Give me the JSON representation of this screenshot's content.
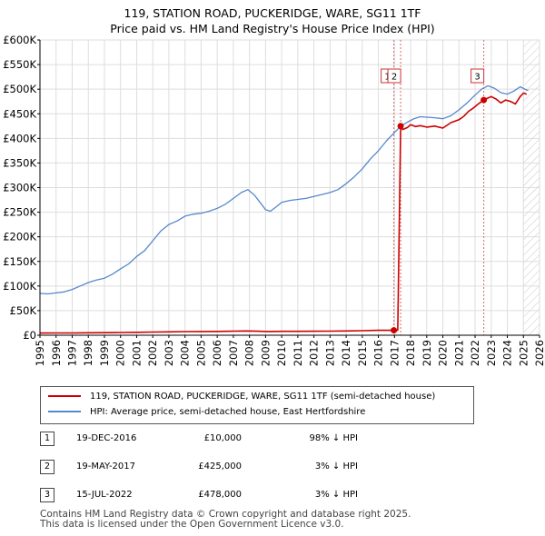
{
  "chart_data": {
    "type": "line",
    "title_line1": "119, STATION ROAD, PUCKERIDGE, WARE, SG11 1TF",
    "title_line2": "Price paid vs. HM Land Registry's House Price Index (HPI)",
    "xlim": [
      1995,
      2026
    ],
    "ylim": [
      0,
      600000
    ],
    "y_ticks": [
      0,
      50000,
      100000,
      150000,
      200000,
      250000,
      300000,
      350000,
      400000,
      450000,
      500000,
      550000,
      600000
    ],
    "y_tick_labels": [
      "£0",
      "£50K",
      "£100K",
      "£150K",
      "£200K",
      "£250K",
      "£300K",
      "£350K",
      "£400K",
      "£450K",
      "£500K",
      "£550K",
      "£600K"
    ],
    "x_ticks": [
      1995,
      1996,
      1997,
      1998,
      1999,
      2000,
      2001,
      2002,
      2003,
      2004,
      2005,
      2006,
      2007,
      2008,
      2009,
      2010,
      2011,
      2012,
      2013,
      2014,
      2015,
      2016,
      2017,
      2018,
      2019,
      2020,
      2021,
      2022,
      2023,
      2024,
      2025,
      2026
    ],
    "x_tick_labels": [
      "1995",
      "1996",
      "1997",
      "1998",
      "1999",
      "2000",
      "2001",
      "2002",
      "2003",
      "2004",
      "2005",
      "2006",
      "2007",
      "2008",
      "2009",
      "2010",
      "2011",
      "2012",
      "2013",
      "2014",
      "2015",
      "2016",
      "2017",
      "2018",
      "2019",
      "2020",
      "2021",
      "2022",
      "2023",
      "2024",
      "2025",
      "2026"
    ],
    "hatch_from": 2025.0,
    "series": [
      {
        "name": "119, STATION ROAD, PUCKERIDGE, WARE, SG11 1TF (semi-detached house)",
        "color": "#cc0000",
        "x": [
          1995.0,
          1996.0,
          1997.0,
          1998.0,
          1999.0,
          2000.0,
          2001.0,
          2002.0,
          2003.0,
          2004.0,
          2005.0,
          2006.0,
          2007.0,
          2007.8,
          2008.5,
          2009.2,
          2010.0,
          2011.0,
          2012.0,
          2013.0,
          2014.0,
          2015.0,
          2016.0,
          2016.96,
          2017.0,
          2017.2,
          2017.38,
          2017.5,
          2017.8,
          2018.0,
          2018.3,
          2018.6,
          2019.0,
          2019.5,
          2020.0,
          2020.5,
          2021.0,
          2021.3,
          2021.6,
          2021.9,
          2022.2,
          2022.54,
          2022.8,
          2023.0,
          2023.3,
          2023.6,
          2023.9,
          2024.2,
          2024.5,
          2024.8,
          2025.0,
          2025.2
        ],
        "y": [
          4500,
          4600,
          4700,
          4900,
          5100,
          5500,
          5900,
          6400,
          6900,
          7300,
          7500,
          7800,
          8300,
          8600,
          8200,
          7500,
          7900,
          8000,
          8100,
          8300,
          8700,
          9300,
          9900,
          10000,
          10050,
          10200,
          425000,
          418000,
          422000,
          428000,
          424000,
          426000,
          423000,
          425000,
          421000,
          432000,
          438000,
          445000,
          455000,
          462000,
          470000,
          478000,
          482000,
          485000,
          480000,
          472000,
          478000,
          475000,
          470000,
          485000,
          492000,
          490000
        ]
      },
      {
        "name": "HPI: Average price, semi-detached house, East Hertfordshire",
        "color": "#5588cc",
        "x": [
          1995.0,
          1995.5,
          1996.0,
          1996.5,
          1997.0,
          1997.5,
          1998.0,
          1998.5,
          1999.0,
          1999.5,
          2000.0,
          2000.5,
          2001.0,
          2001.5,
          2002.0,
          2002.5,
          2003.0,
          2003.5,
          2004.0,
          2004.5,
          2005.0,
          2005.5,
          2006.0,
          2006.5,
          2007.0,
          2007.5,
          2007.9,
          2008.3,
          2008.7,
          2009.0,
          2009.3,
          2009.7,
          2010.0,
          2010.5,
          2011.0,
          2011.5,
          2012.0,
          2012.5,
          2013.0,
          2013.5,
          2014.0,
          2014.5,
          2015.0,
          2015.5,
          2016.0,
          2016.5,
          2017.0,
          2017.4,
          2017.8,
          2018.2,
          2018.6,
          2019.0,
          2019.5,
          2020.0,
          2020.5,
          2021.0,
          2021.5,
          2022.0,
          2022.4,
          2022.8,
          2023.2,
          2023.6,
          2024.0,
          2024.4,
          2024.8,
          2025.1,
          2025.3
        ],
        "y": [
          85000,
          84000,
          86000,
          88000,
          93000,
          100000,
          107000,
          112000,
          116000,
          124000,
          135000,
          145000,
          160000,
          172000,
          192000,
          212000,
          225000,
          232000,
          242000,
          246000,
          248000,
          252000,
          258000,
          266000,
          278000,
          290000,
          296000,
          285000,
          268000,
          255000,
          252000,
          262000,
          270000,
          274000,
          276000,
          278000,
          282000,
          286000,
          290000,
          296000,
          308000,
          322000,
          338000,
          358000,
          375000,
          395000,
          412000,
          425000,
          433000,
          440000,
          444000,
          443000,
          442000,
          440000,
          446000,
          458000,
          472000,
          488000,
          500000,
          507000,
          502000,
          493000,
          490000,
          496000,
          505000,
          500000,
          497000
        ]
      }
    ],
    "events": [
      {
        "id": "1",
        "x": 2016.96,
        "y": 10000
      },
      {
        "id": "2",
        "x": 2017.38,
        "y": 425000
      },
      {
        "id": "3",
        "x": 2022.54,
        "y": 478000
      }
    ],
    "legend": [
      {
        "label": "119, STATION ROAD, PUCKERIDGE, WARE, SG11 1TF (semi-detached house)",
        "color": "#cc0000"
      },
      {
        "label": "HPI: Average price, semi-detached house, East Hertfordshire",
        "color": "#5588cc"
      }
    ]
  },
  "sales": [
    {
      "id": "1",
      "date": "19-DEC-2016",
      "price": "£10,000",
      "hpi": "98% ↓ HPI"
    },
    {
      "id": "2",
      "date": "19-MAY-2017",
      "price": "£425,000",
      "hpi": "3% ↓ HPI"
    },
    {
      "id": "3",
      "date": "15-JUL-2022",
      "price": "£478,000",
      "hpi": "3% ↓ HPI"
    }
  ],
  "footer_line1": "Contains HM Land Registry data © Crown copyright and database right 2025.",
  "footer_line2": "This data is licensed under the Open Government Licence v3.0."
}
